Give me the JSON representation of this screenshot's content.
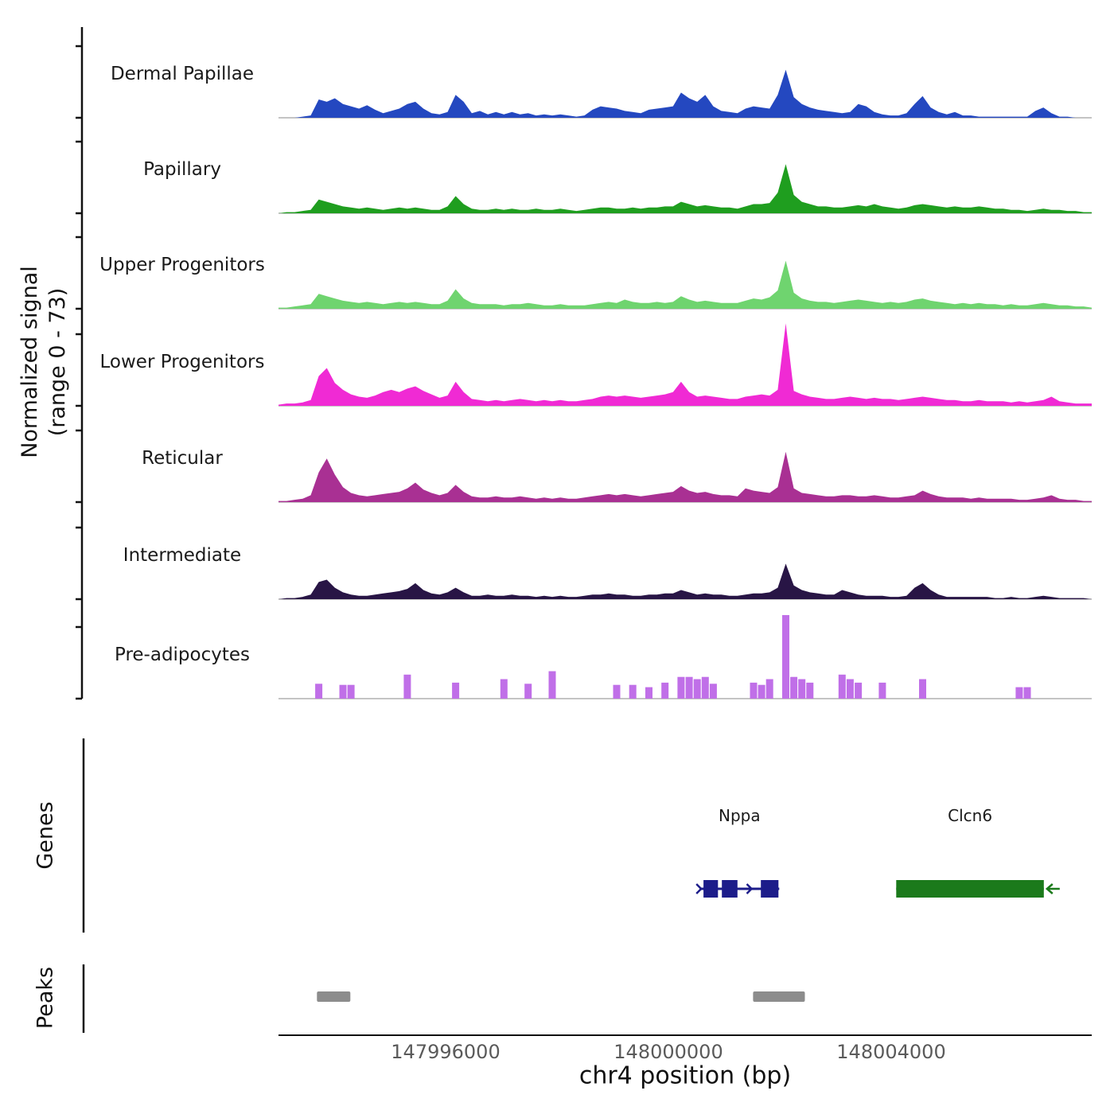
{
  "figure": {
    "y_axis_label_line1": "Normalized signal",
    "y_axis_label_line2": "(range 0 - 73)",
    "genes_label": "Genes",
    "peaks_label": "Peaks"
  },
  "chart_data": {
    "type": "area",
    "title": "",
    "xlabel": "chr4 position (bp)",
    "ylabel": "Normalized signal (range 0 - 73)",
    "ylim": [
      0,
      73
    ],
    "x_start": 147993000,
    "x_end": 148007600,
    "x_ticks": [
      147996000,
      148000000,
      148004000
    ],
    "x_tick_labels": [
      "147996000",
      "148000000",
      "148004000"
    ],
    "grid": false,
    "legend": "none",
    "peak_color": "#8c8c8c",
    "series": [
      {
        "name": "Dermal Papillae",
        "color": "#2448c0",
        "style": "area",
        "values": [
          0,
          0,
          0,
          1,
          2,
          16,
          14,
          17,
          12,
          10,
          8,
          11,
          7,
          4,
          6,
          8,
          12,
          14,
          8,
          4,
          3,
          5,
          20,
          14,
          4,
          6,
          3,
          5,
          3,
          5,
          3,
          4,
          2,
          3,
          2,
          3,
          2,
          1,
          2,
          7,
          10,
          9,
          8,
          6,
          5,
          4,
          7,
          8,
          9,
          10,
          22,
          17,
          14,
          20,
          10,
          6,
          5,
          4,
          8,
          10,
          9,
          8,
          20,
          42,
          18,
          12,
          9,
          7,
          6,
          5,
          4,
          5,
          12,
          10,
          5,
          3,
          2,
          2,
          4,
          12,
          19,
          9,
          5,
          3,
          5,
          2,
          2,
          1,
          1,
          1,
          1,
          1,
          1,
          1,
          6,
          9,
          4,
          1,
          1,
          0,
          0,
          0
        ]
      },
      {
        "name": "Papillary",
        "color": "#1f9e1f",
        "style": "area",
        "values": [
          0,
          1,
          1,
          2,
          3,
          12,
          10,
          8,
          6,
          5,
          4,
          5,
          4,
          3,
          4,
          5,
          4,
          5,
          4,
          3,
          3,
          6,
          15,
          8,
          4,
          3,
          3,
          4,
          3,
          4,
          3,
          3,
          4,
          3,
          3,
          4,
          3,
          2,
          3,
          4,
          5,
          5,
          4,
          4,
          5,
          4,
          5,
          5,
          6,
          6,
          10,
          8,
          6,
          7,
          6,
          5,
          5,
          4,
          6,
          8,
          8,
          9,
          18,
          43,
          16,
          10,
          8,
          6,
          6,
          5,
          5,
          6,
          7,
          6,
          8,
          6,
          5,
          4,
          5,
          7,
          8,
          7,
          6,
          5,
          6,
          5,
          5,
          6,
          5,
          4,
          4,
          3,
          3,
          2,
          3,
          4,
          3,
          3,
          2,
          2,
          1,
          1
        ]
      },
      {
        "name": "Upper Progenitors",
        "color": "#6fd46f",
        "style": "area",
        "values": [
          1,
          1,
          2,
          3,
          4,
          13,
          11,
          9,
          7,
          6,
          5,
          6,
          5,
          4,
          5,
          6,
          5,
          6,
          5,
          4,
          4,
          7,
          17,
          9,
          5,
          4,
          4,
          4,
          3,
          4,
          4,
          5,
          4,
          3,
          3,
          4,
          3,
          3,
          3,
          4,
          5,
          6,
          5,
          8,
          6,
          5,
          5,
          6,
          5,
          6,
          11,
          8,
          6,
          7,
          6,
          5,
          5,
          5,
          7,
          9,
          8,
          10,
          16,
          42,
          14,
          9,
          7,
          6,
          6,
          5,
          6,
          7,
          8,
          7,
          6,
          5,
          6,
          5,
          6,
          8,
          9,
          7,
          6,
          5,
          4,
          5,
          4,
          5,
          4,
          4,
          3,
          4,
          3,
          3,
          4,
          5,
          4,
          3,
          3,
          2,
          2,
          1
        ]
      },
      {
        "name": "Lower Progenitors",
        "color": "#f02ad4",
        "style": "area",
        "values": [
          1,
          2,
          2,
          3,
          5,
          26,
          33,
          20,
          14,
          10,
          8,
          7,
          9,
          12,
          14,
          12,
          15,
          17,
          13,
          10,
          7,
          9,
          21,
          12,
          6,
          5,
          4,
          5,
          4,
          5,
          6,
          5,
          4,
          5,
          4,
          5,
          4,
          4,
          5,
          6,
          8,
          9,
          8,
          9,
          8,
          7,
          8,
          9,
          10,
          12,
          21,
          12,
          8,
          9,
          8,
          7,
          6,
          6,
          8,
          9,
          10,
          9,
          14,
          72,
          13,
          10,
          8,
          7,
          6,
          6,
          7,
          8,
          7,
          6,
          7,
          6,
          6,
          5,
          6,
          7,
          8,
          7,
          6,
          5,
          5,
          4,
          4,
          5,
          4,
          4,
          4,
          3,
          4,
          3,
          4,
          5,
          8,
          4,
          3,
          2,
          2,
          2
        ]
      },
      {
        "name": "Reticular",
        "color": "#a93093",
        "style": "area",
        "values": [
          1,
          1,
          2,
          3,
          6,
          26,
          38,
          24,
          13,
          8,
          6,
          5,
          6,
          7,
          8,
          9,
          12,
          17,
          11,
          8,
          6,
          8,
          15,
          9,
          5,
          4,
          4,
          5,
          4,
          4,
          5,
          4,
          3,
          4,
          3,
          4,
          3,
          3,
          4,
          5,
          6,
          7,
          6,
          7,
          6,
          5,
          6,
          7,
          8,
          9,
          14,
          10,
          8,
          9,
          7,
          6,
          6,
          5,
          12,
          10,
          9,
          8,
          13,
          44,
          12,
          8,
          7,
          6,
          5,
          5,
          6,
          6,
          5,
          5,
          6,
          5,
          4,
          4,
          5,
          6,
          10,
          7,
          5,
          4,
          4,
          4,
          3,
          4,
          3,
          3,
          3,
          3,
          2,
          2,
          3,
          4,
          6,
          3,
          2,
          2,
          1,
          1
        ]
      },
      {
        "name": "Intermediate",
        "color": "#281545",
        "style": "area",
        "values": [
          0,
          1,
          1,
          2,
          4,
          15,
          17,
          10,
          6,
          4,
          3,
          3,
          4,
          5,
          6,
          7,
          9,
          14,
          8,
          5,
          4,
          6,
          10,
          6,
          3,
          3,
          4,
          3,
          3,
          4,
          3,
          3,
          2,
          3,
          2,
          3,
          2,
          2,
          3,
          4,
          4,
          5,
          4,
          4,
          3,
          3,
          4,
          4,
          5,
          5,
          8,
          6,
          4,
          5,
          4,
          4,
          3,
          3,
          4,
          5,
          5,
          6,
          10,
          31,
          12,
          8,
          6,
          5,
          4,
          4,
          8,
          6,
          4,
          3,
          3,
          3,
          2,
          2,
          3,
          10,
          14,
          8,
          4,
          2,
          2,
          2,
          2,
          2,
          2,
          1,
          1,
          2,
          1,
          1,
          2,
          3,
          2,
          1,
          1,
          1,
          1,
          0
        ]
      },
      {
        "name": "Pre-adipocytes",
        "color": "#c06fe8",
        "style": "bars",
        "values": [
          0,
          0,
          0,
          0,
          0,
          13,
          0,
          0,
          12,
          12,
          0,
          0,
          0,
          0,
          0,
          0,
          21,
          0,
          0,
          0,
          0,
          0,
          14,
          0,
          0,
          0,
          0,
          0,
          17,
          0,
          0,
          13,
          0,
          0,
          24,
          0,
          0,
          0,
          0,
          0,
          0,
          0,
          12,
          0,
          12,
          0,
          10,
          0,
          14,
          0,
          19,
          19,
          17,
          19,
          13,
          0,
          0,
          0,
          0,
          14,
          12,
          17,
          0,
          73,
          19,
          17,
          14,
          0,
          0,
          0,
          21,
          17,
          14,
          0,
          0,
          14,
          0,
          0,
          0,
          0,
          17,
          0,
          0,
          0,
          0,
          0,
          0,
          0,
          0,
          0,
          0,
          0,
          10,
          10,
          0,
          0,
          0,
          0,
          0,
          0,
          0,
          0
        ]
      }
    ],
    "genes": [
      {
        "name": "Nppa",
        "color": "#1c1c8a",
        "strand": "+",
        "start": 148000560,
        "end": 148001990,
        "exons": [
          [
            148000630,
            148000890
          ],
          [
            148000960,
            148001240
          ],
          [
            148001660,
            148001975
          ]
        ]
      },
      {
        "name": "Clcn6",
        "color": "#1b7a1b",
        "strand": "-",
        "start": 148004090,
        "end": 148006740,
        "exons": [
          [
            148004090,
            148006740
          ]
        ]
      }
    ],
    "peaks": [
      {
        "start": 147993690,
        "end": 147994290
      },
      {
        "start": 148001520,
        "end": 148002450
      }
    ]
  }
}
